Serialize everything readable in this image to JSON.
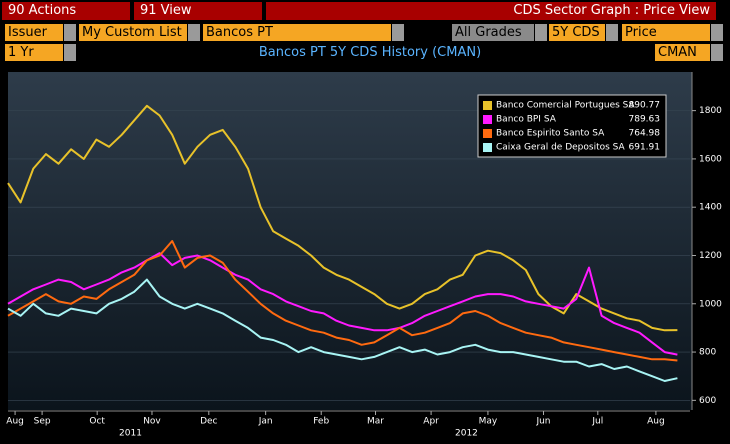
{
  "toolbar": {
    "actions": "90 Actions",
    "view": "91 View",
    "screen_title": "CDS Sector Graph : Price View"
  },
  "fields": {
    "issuer": "Issuer",
    "list": "My Custom List",
    "list_name": "Bancos PT",
    "grades": "All Grades",
    "tenor": "5Y CDS",
    "measure": "Price",
    "period": "1 Yr",
    "source": "CMAN"
  },
  "chart_data": {
    "type": "line",
    "title": "Bancos PT 5Y CDS History (CMAN)",
    "x": [
      0,
      1,
      2,
      3,
      4,
      5,
      6,
      7,
      8,
      9,
      10,
      11,
      12,
      13,
      14,
      15,
      16,
      17,
      18,
      19,
      20,
      21,
      22,
      23,
      24,
      25,
      26,
      27,
      28,
      29,
      30,
      31,
      32,
      33,
      34,
      35,
      36,
      37,
      38,
      39,
      40,
      41,
      42,
      43,
      44,
      45,
      46,
      47,
      48,
      49,
      50,
      51,
      52,
      53
    ],
    "xlim": [
      0,
      54
    ],
    "xticks": [
      {
        "value": 0.56,
        "label": "Aug"
      },
      {
        "value": 2.7,
        "label": "Sep"
      },
      {
        "value": 7.06,
        "label": "Oct"
      },
      {
        "value": 11.4,
        "label": "Nov"
      },
      {
        "value": 15.9,
        "label": "Dec"
      },
      {
        "value": 20.4,
        "label": "Jan"
      },
      {
        "value": 24.8,
        "label": "Feb"
      },
      {
        "value": 29.1,
        "label": "Mar"
      },
      {
        "value": 33.5,
        "label": "Apr"
      },
      {
        "value": 38.0,
        "label": "May"
      },
      {
        "value": 42.4,
        "label": "Jun"
      },
      {
        "value": 46.7,
        "label": "Jul"
      },
      {
        "value": 51.3,
        "label": "Aug"
      }
    ],
    "year_ticks": [
      {
        "value": 9.7,
        "label": "2011"
      },
      {
        "value": 36.3,
        "label": "2012"
      }
    ],
    "ylim": [
      560,
      1960
    ],
    "yticks": [
      600,
      800,
      1000,
      1200,
      1400,
      1600,
      1800
    ],
    "legend": "upper right",
    "series": [
      {
        "name": "Banco Comercial Portugues SA",
        "color": "#e8c22a",
        "values": [
          1500,
          1420,
          1560,
          1620,
          1580,
          1640,
          1600,
          1680,
          1650,
          1700,
          1760,
          1820,
          1780,
          1700,
          1580,
          1650,
          1700,
          1720,
          1650,
          1560,
          1400,
          1300,
          1270,
          1240,
          1200,
          1150,
          1120,
          1100,
          1070,
          1040,
          1000,
          980,
          1000,
          1040,
          1060,
          1100,
          1120,
          1200,
          1220,
          1210,
          1180,
          1140,
          1040,
          990,
          960,
          1040,
          1010,
          980,
          960,
          940,
          930,
          900,
          890,
          890.77
        ]
      },
      {
        "name": "Banco BPI SA",
        "color": "#ff1aff",
        "values": [
          1000,
          1030,
          1060,
          1080,
          1100,
          1090,
          1060,
          1080,
          1100,
          1130,
          1150,
          1180,
          1210,
          1160,
          1190,
          1200,
          1180,
          1150,
          1120,
          1100,
          1060,
          1040,
          1010,
          990,
          970,
          960,
          930,
          910,
          900,
          890,
          890,
          900,
          920,
          950,
          970,
          990,
          1010,
          1030,
          1040,
          1040,
          1030,
          1010,
          1000,
          990,
          980,
          1020,
          1150,
          950,
          920,
          900,
          880,
          840,
          800,
          789.63
        ]
      },
      {
        "name": "Banco Espirito Santo SA",
        "color": "#ff6a10",
        "values": [
          950,
          980,
          1010,
          1040,
          1010,
          1000,
          1030,
          1020,
          1060,
          1090,
          1120,
          1180,
          1200,
          1260,
          1150,
          1190,
          1200,
          1170,
          1100,
          1050,
          1000,
          960,
          930,
          910,
          890,
          880,
          860,
          850,
          830,
          840,
          870,
          900,
          870,
          880,
          900,
          920,
          960,
          970,
          950,
          920,
          900,
          880,
          870,
          860,
          840,
          830,
          820,
          810,
          800,
          790,
          780,
          770,
          770,
          764.98
        ]
      },
      {
        "name": "Caixa Geral de Depositos SA",
        "color": "#a8f4f4",
        "values": [
          980,
          950,
          1000,
          960,
          950,
          980,
          970,
          960,
          1000,
          1020,
          1050,
          1100,
          1030,
          1000,
          980,
          1000,
          980,
          960,
          930,
          900,
          860,
          850,
          830,
          800,
          820,
          800,
          790,
          780,
          770,
          780,
          800,
          820,
          800,
          810,
          790,
          800,
          820,
          830,
          810,
          800,
          800,
          790,
          780,
          770,
          760,
          760,
          740,
          750,
          730,
          740,
          720,
          700,
          680,
          691.91
        ]
      }
    ]
  }
}
